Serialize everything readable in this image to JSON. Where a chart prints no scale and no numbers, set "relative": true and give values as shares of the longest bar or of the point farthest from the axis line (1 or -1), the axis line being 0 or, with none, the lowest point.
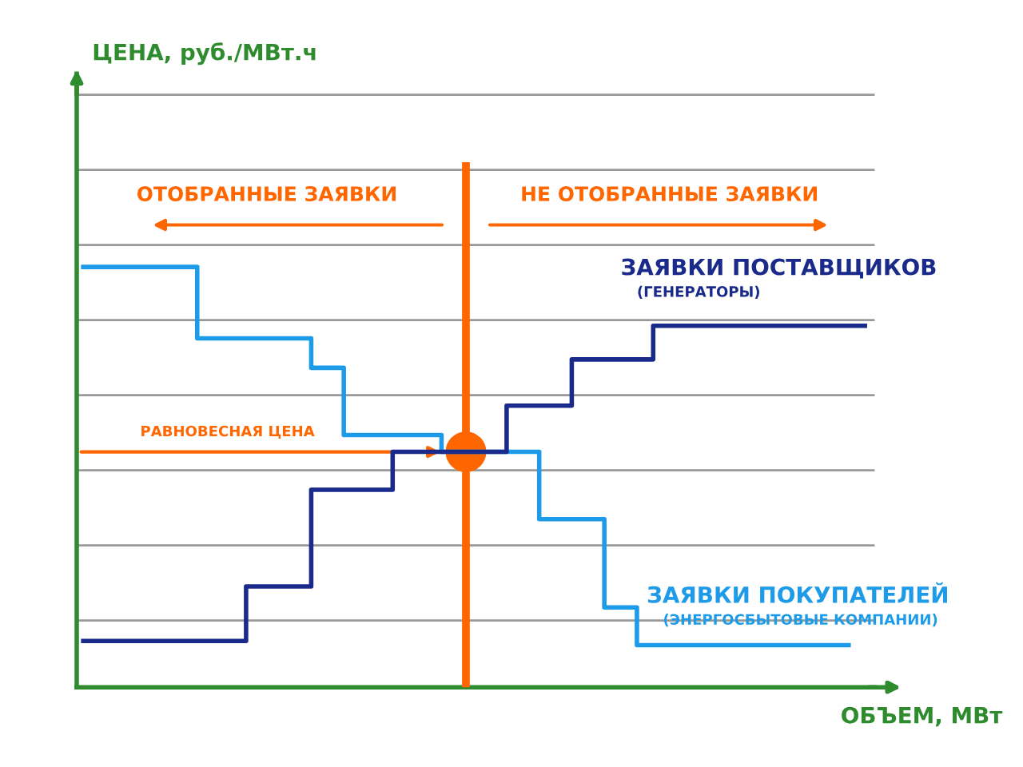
{
  "chart_data": {
    "type": "step",
    "relative": true,
    "xlabel": "ОБЪЕМ, МВт",
    "categories": [
      null,
      null,
      null,
      null,
      null,
      null,
      null,
      null,
      null,
      null,
      null,
      null,
      null,
      null,
      null,
      null,
      null,
      null,
      null,
      null,
      null,
      null,
      null,
      null,
      null,
      null,
      null,
      null,
      null,
      null,
      null,
      null,
      null,
      null,
      null,
      null,
      null,
      null,
      null,
      null,
      null,
      null,
      null,
      null,
      null,
      null,
      null,
      null,
      null
    ],
    "series": [
      {
        "name": "ЗАЯВКИ ПОКУПАТЕЛЕЙ",
        "color": "#1e9be8",
        "values": [
          1,
          1,
          1,
          1,
          1,
          1,
          1,
          0.83,
          0.83,
          0.83,
          0.83,
          0.83,
          0.83,
          0.83,
          0.76,
          0.76,
          0.6,
          0.6,
          0.6,
          0.6,
          0.6,
          0.6,
          0.56,
          0.56,
          0.56,
          0.56,
          0.56,
          0.56,
          0.4,
          0.4,
          0.4,
          0.4,
          0.19,
          0.19,
          0.1,
          0.1,
          0.1,
          0.1,
          0.1,
          0.1,
          0.1,
          0.1,
          0.1,
          0.1,
          0.1,
          0.1,
          0.1,
          0.1,
          null
        ]
      },
      {
        "name": "ЗАЯВКИ ПОСТАВЩИКОВ",
        "color": "#1a2a8a",
        "values": [
          0.11,
          0.11,
          0.11,
          0.11,
          0.11,
          0.11,
          0.11,
          0.11,
          0.11,
          0.11,
          0.24,
          0.24,
          0.24,
          0.24,
          0.47,
          0.47,
          0.47,
          0.47,
          0.47,
          0.56,
          0.56,
          0.56,
          0.56,
          0.56,
          0.56,
          0.56,
          0.67,
          0.67,
          0.67,
          0.67,
          0.78,
          0.78,
          0.78,
          0.78,
          0.78,
          0.86,
          0.86,
          0.86,
          0.86,
          0.86,
          0.86,
          0.86,
          0.86,
          0.86,
          0.86,
          0.86,
          0.86,
          0.86,
          0.86
        ]
      }
    ],
    "annotations": [
      "РАВНОВЕСНАЯ ЦЕНА",
      "ОТОБРАННЫЕ ЗАЯВКИ",
      "НЕ ОТОБРАННЫЕ ЗАЯВКИ",
      "(ГЕНЕРАТОРЫ)",
      "(ЭНЕРГОСБЫТОВЫЕ КОМПАНИИ)",
      "ЦЕНА, руб./МВт.ч"
    ],
    "grid": "y"
  }
}
